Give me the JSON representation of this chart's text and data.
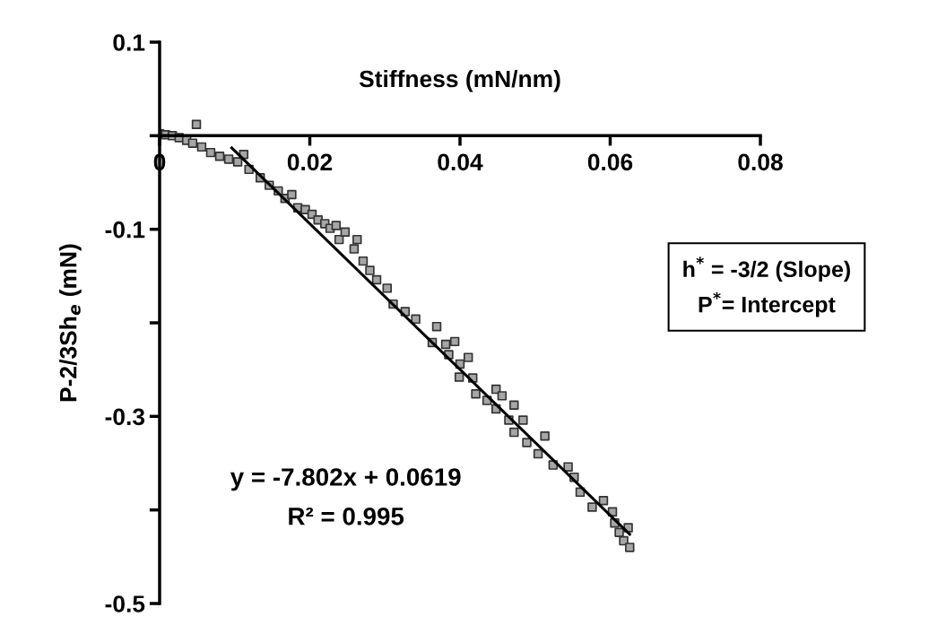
{
  "chart_data": {
    "type": "scatter",
    "xlabel": "Stiffness (mN/nm)",
    "ylabel": "P-2/3Sh$_{e}$ (mN)",
    "xlim": [
      0,
      0.08
    ],
    "xticks": [
      0,
      0.02,
      0.04,
      0.06,
      0.08
    ],
    "ylim": [
      -0.5,
      0.1
    ],
    "yticks": [
      {
        "value": 0.1,
        "label": "0.1"
      },
      {
        "value": 0,
        "label": null
      },
      {
        "value": -0.1,
        "label": "-0.1"
      },
      {
        "value": -0.2,
        "label": null
      },
      {
        "value": -0.3,
        "label": "-0.3"
      },
      {
        "value": -0.4,
        "label": null
      },
      {
        "value": -0.5,
        "label": "-0.5"
      }
    ],
    "marker": "square",
    "grid": false,
    "legend": false,
    "series": [
      {
        "type": "scatter",
        "color": "#a6a6a6",
        "x": [
          0,
          0.0008,
          0.0017,
          0.0026,
          0.0036,
          0.0049,
          0.0044,
          0.0056,
          0.0068,
          0.008,
          0.0092,
          0.0104,
          0.0112,
          0.0119,
          0.0134,
          0.0146,
          0.0158,
          0.0167,
          0.0176,
          0.0184,
          0.0194,
          0.0203,
          0.0211,
          0.022,
          0.0227,
          0.0235,
          0.0239,
          0.0247,
          0.0259,
          0.0263,
          0.0271,
          0.028,
          0.0289,
          0.0303,
          0.0311,
          0.0327,
          0.0341,
          0.0369,
          0.0363,
          0.0381,
          0.0393,
          0.0385,
          0.04,
          0.0411,
          0.0399,
          0.0417,
          0.0421,
          0.0448,
          0.0436,
          0.0456,
          0.0448,
          0.0472,
          0.0465,
          0.0484,
          0.0472,
          0.0489,
          0.0513,
          0.0504,
          0.0524,
          0.0544,
          0.0552,
          0.056,
          0.0576,
          0.0591,
          0.0603,
          0.0606,
          0.0612,
          0.0624,
          0.0618,
          0.0626
        ],
        "values": [
          0.002,
          0.001,
          0,
          -0.002,
          -0.005,
          0.012,
          -0.008,
          -0.012,
          -0.018,
          -0.022,
          -0.025,
          -0.028,
          -0.02,
          -0.036,
          -0.045,
          -0.053,
          -0.059,
          -0.067,
          -0.063,
          -0.077,
          -0.079,
          -0.084,
          -0.09,
          -0.094,
          -0.099,
          -0.096,
          -0.111,
          -0.103,
          -0.121,
          -0.111,
          -0.134,
          -0.144,
          -0.154,
          -0.163,
          -0.18,
          -0.188,
          -0.196,
          -0.204,
          -0.221,
          -0.223,
          -0.22,
          -0.234,
          -0.244,
          -0.237,
          -0.258,
          -0.259,
          -0.276,
          -0.271,
          -0.283,
          -0.278,
          -0.292,
          -0.288,
          -0.304,
          -0.304,
          -0.317,
          -0.328,
          -0.321,
          -0.34,
          -0.352,
          -0.354,
          -0.365,
          -0.381,
          -0.397,
          -0.39,
          -0.402,
          -0.414,
          -0.424,
          -0.419,
          -0.433,
          -0.44
        ]
      },
      {
        "type": "line",
        "color": "#000000",
        "marker": "none",
        "x": [
          0.0096,
          0.0626
        ],
        "values": [
          -0.013,
          -0.426
        ]
      }
    ],
    "annotations": [
      "y = -7.802x + 0.0619",
      "R² = 0.995",
      "h$^{*}$ = -3/2 (Slope)\nP$^{*}$= Intercept"
    ]
  }
}
